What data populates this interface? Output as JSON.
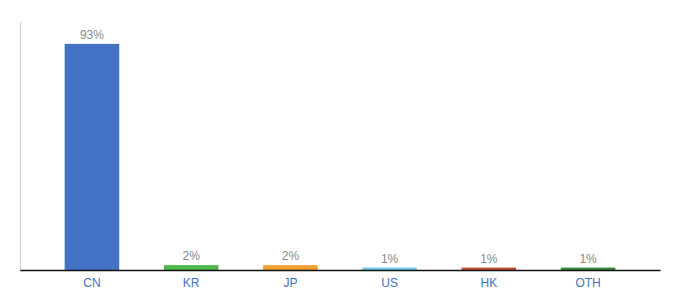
{
  "chart_data": {
    "type": "bar",
    "categories": [
      "CN",
      "KR",
      "JP",
      "US",
      "HK",
      "OTH"
    ],
    "values": [
      93,
      2,
      2,
      1,
      1,
      1
    ],
    "value_labels": [
      "93%",
      "2%",
      "2%",
      "1%",
      "1%",
      "1%"
    ],
    "colors": [
      "#4472c4",
      "#4db847",
      "#f0a030",
      "#6ec6f0",
      "#c0522a",
      "#3a8a3a"
    ],
    "ylim": [
      0,
      102
    ],
    "data_labels": true,
    "tick_labels": "x",
    "grid": false
  }
}
